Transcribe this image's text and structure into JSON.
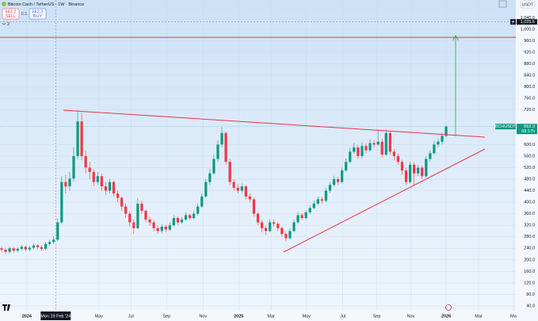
{
  "toolbar": {
    "sell_price": "662.2",
    "sell_label": "SELL",
    "spread": "0.1",
    "buy_price": "662.3",
    "buy_label": "BUY",
    "indicators": "2",
    "currency": "USDT"
  },
  "chart_data": {
    "type": "candlestick",
    "title": "Bitcoin Cash / TetherUS · 1W · Binance",
    "open": [
      240,
      235,
      228,
      240,
      232,
      238,
      245,
      236,
      242,
      250,
      244,
      238,
      255,
      262,
      270,
      330,
      470,
      455,
      482,
      560,
      680,
      560,
      520,
      505,
      470,
      490,
      455,
      440,
      470,
      430,
      415,
      385,
      360,
      330,
      310,
      395,
      370,
      340,
      330,
      310,
      300,
      315,
      305,
      320,
      345,
      330,
      340,
      355,
      345,
      360,
      385,
      420,
      470,
      500,
      550,
      600,
      640,
      540,
      470,
      450,
      440,
      455,
      420,
      410,
      360,
      330,
      310,
      300,
      330,
      325,
      310,
      290,
      275,
      300,
      330,
      355,
      345,
      365,
      380,
      395,
      410,
      405,
      440,
      460,
      480,
      470,
      510,
      540,
      575,
      590,
      560,
      595,
      580,
      605,
      600,
      610,
      565,
      640,
      575,
      560,
      540,
      510,
      470,
      530,
      500,
      520,
      490,
      550,
      570,
      600,
      610,
      630
    ],
    "high": [
      248,
      242,
      246,
      245,
      244,
      252,
      250,
      249,
      258,
      255,
      250,
      262,
      270,
      282,
      345,
      490,
      495,
      505,
      590,
      716,
      710,
      580,
      540,
      515,
      505,
      500,
      470,
      480,
      475,
      440,
      420,
      395,
      368,
      340,
      414,
      405,
      375,
      350,
      338,
      320,
      325,
      322,
      330,
      355,
      350,
      348,
      365,
      360,
      370,
      395,
      430,
      480,
      515,
      565,
      615,
      660,
      645,
      550,
      480,
      462,
      465,
      460,
      430,
      415,
      365,
      338,
      318,
      340,
      340,
      332,
      315,
      298,
      310,
      340,
      365,
      362,
      372,
      390,
      405,
      420,
      418,
      450,
      470,
      492,
      488,
      520,
      552,
      588,
      605,
      598,
      608,
      605,
      618,
      615,
      648,
      620,
      652,
      645,
      585,
      570,
      548,
      520,
      540,
      538,
      530,
      528,
      560,
      580,
      612,
      620,
      640,
      668
    ],
    "low": [
      228,
      220,
      222,
      225,
      226,
      232,
      229,
      230,
      236,
      237,
      230,
      234,
      248,
      255,
      265,
      325,
      430,
      440,
      470,
      550,
      545,
      500,
      480,
      455,
      460,
      440,
      425,
      430,
      420,
      400,
      370,
      345,
      315,
      290,
      305,
      360,
      330,
      318,
      298,
      290,
      292,
      295,
      300,
      315,
      322,
      325,
      335,
      338,
      340,
      355,
      380,
      415,
      460,
      495,
      540,
      590,
      530,
      460,
      440,
      430,
      432,
      410,
      400,
      350,
      320,
      295,
      285,
      295,
      315,
      300,
      280,
      263,
      270,
      295,
      325,
      338,
      340,
      358,
      375,
      390,
      395,
      400,
      432,
      455,
      460,
      465,
      505,
      535,
      568,
      550,
      552,
      570,
      575,
      590,
      595,
      555,
      560,
      565,
      545,
      530,
      495,
      460,
      465,
      460,
      490,
      480,
      485,
      540,
      565,
      590,
      600,
      625
    ],
    "close": [
      235,
      228,
      240,
      232,
      238,
      245,
      236,
      242,
      250,
      244,
      238,
      255,
      262,
      270,
      330,
      470,
      455,
      482,
      560,
      680,
      560,
      520,
      505,
      470,
      490,
      455,
      440,
      470,
      430,
      415,
      385,
      360,
      330,
      310,
      395,
      370,
      340,
      330,
      310,
      300,
      315,
      305,
      320,
      345,
      330,
      340,
      355,
      345,
      360,
      385,
      420,
      470,
      500,
      550,
      600,
      640,
      540,
      470,
      450,
      440,
      455,
      420,
      410,
      360,
      330,
      310,
      300,
      330,
      325,
      310,
      290,
      275,
      300,
      330,
      355,
      345,
      365,
      380,
      395,
      410,
      405,
      440,
      460,
      480,
      470,
      510,
      540,
      575,
      590,
      560,
      595,
      580,
      605,
      600,
      610,
      565,
      640,
      575,
      560,
      540,
      510,
      470,
      530,
      500,
      520,
      490,
      550,
      570,
      600,
      610,
      630,
      662.3
    ],
    "up_color": "#089981",
    "down_color": "#f23645",
    "xlim": [
      -0.4,
      128.4
    ],
    "xticks": [
      {
        "value": 6.3,
        "label": "2024"
      },
      {
        "value": 24.3,
        "label": "May"
      },
      {
        "value": 32.3,
        "label": "Jul"
      },
      {
        "value": 41.2,
        "label": "Sep"
      },
      {
        "value": 50.3,
        "label": "Nov"
      },
      {
        "value": 59.2,
        "label": "2025"
      },
      {
        "value": 67.3,
        "label": "Mar"
      },
      {
        "value": 76.1,
        "label": "May"
      },
      {
        "value": 85.2,
        "label": "Jul"
      },
      {
        "value": 93.7,
        "label": "Sep"
      },
      {
        "value": 102.2,
        "label": "Nov"
      },
      {
        "value": 111,
        "label": "2026"
      },
      {
        "value": 119.1,
        "label": "Mar"
      },
      {
        "value": 127.8,
        "label": "Ma"
      }
    ],
    "ylim": [
      23.5,
      1101.5
    ],
    "yticks": [
      {
        "value": 40,
        "label": "40.0"
      },
      {
        "value": 80,
        "label": "80.0"
      },
      {
        "value": 120,
        "label": "120.0"
      },
      {
        "value": 160,
        "label": "160.0"
      },
      {
        "value": 200,
        "label": "200.0"
      },
      {
        "value": 240,
        "label": "240.0"
      },
      {
        "value": 280,
        "label": "280.0"
      },
      {
        "value": 320,
        "label": "320.0"
      },
      {
        "value": 360,
        "label": "360.0"
      },
      {
        "value": 400,
        "label": "400.0"
      },
      {
        "value": 440,
        "label": "440.0"
      },
      {
        "value": 480,
        "label": "480.0"
      },
      {
        "value": 520,
        "label": "520.0"
      },
      {
        "value": 560,
        "label": "560.0"
      },
      {
        "value": 600,
        "label": "600.0"
      },
      {
        "value": 720,
        "label": "720.0"
      },
      {
        "value": 760,
        "label": "760.0"
      },
      {
        "value": 800,
        "label": "800.0"
      },
      {
        "value": 840,
        "label": "840.0"
      },
      {
        "value": 880,
        "label": "880.0"
      },
      {
        "value": 920,
        "label": "920.0"
      },
      {
        "value": 960,
        "label": "960.0"
      },
      {
        "value": 1000,
        "label": "1,000.0"
      },
      {
        "value": 1040,
        "label": "1,040.0"
      }
    ],
    "grid": true,
    "hline": 972,
    "symbol_tag": "BCHUSDT",
    "countdown": "68:17h",
    "crosshair": {
      "x": 13.5,
      "x_label": "Mon 19 Feb '24",
      "y": 1025.6,
      "y_label": "1,025.6"
    }
  }
}
